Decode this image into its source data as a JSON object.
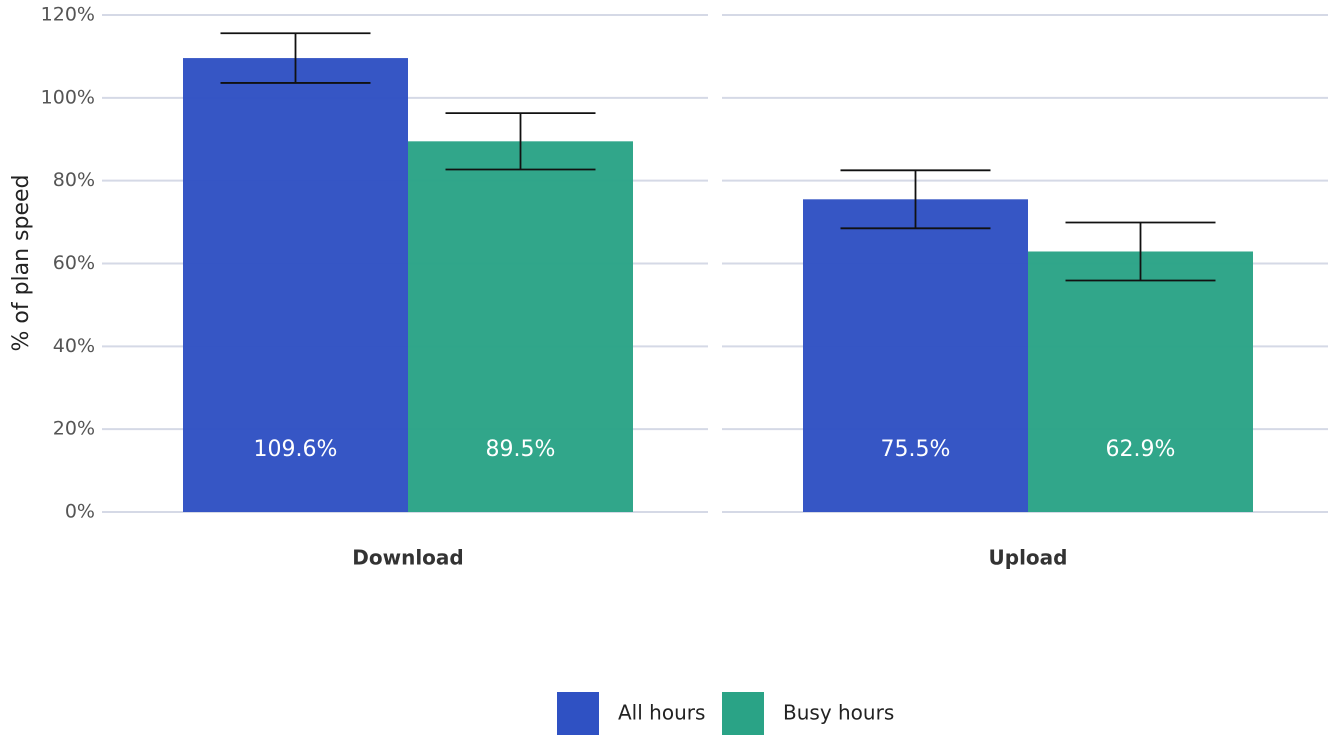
{
  "chart_data": {
    "type": "bar",
    "ylabel": "% of plan speed",
    "categories": [
      "Download",
      "Upload"
    ],
    "series": [
      {
        "name": "All hours",
        "color": "#2f51c3",
        "values": [
          109.6,
          75.5
        ],
        "value_labels": [
          "109.6%",
          "75.5%"
        ],
        "errors": [
          6.0,
          7.0
        ]
      },
      {
        "name": "Busy hours",
        "color": "#2aa386",
        "values": [
          89.5,
          62.9
        ],
        "value_labels": [
          "89.5%",
          "62.9%"
        ],
        "errors": [
          6.8,
          7.0
        ]
      }
    ],
    "ylim": [
      0,
      120
    ],
    "yticks": [
      {
        "value": 0,
        "label": "0%"
      },
      {
        "value": 20,
        "label": "20%"
      },
      {
        "value": 40,
        "label": "40%"
      },
      {
        "value": 60,
        "label": "60%"
      },
      {
        "value": 80,
        "label": "80%"
      },
      {
        "value": 100,
        "label": "100%"
      },
      {
        "value": 120,
        "label": "120%"
      }
    ],
    "grid": true
  }
}
